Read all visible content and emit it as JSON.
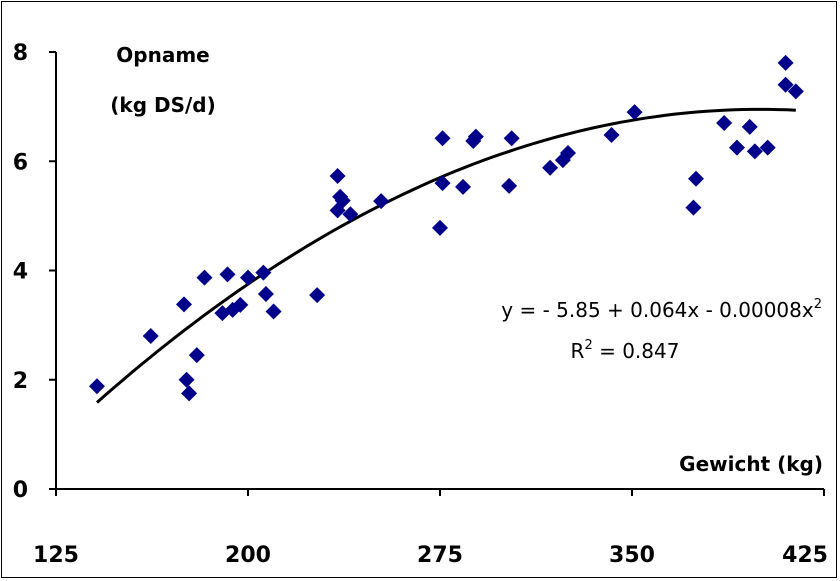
{
  "chart_data": {
    "type": "scatter",
    "ylabel_line1": "Opname",
    "ylabel_line2": "(kg DS/d)",
    "xlabel": "Gewicht (kg)",
    "xlim": [
      125,
      425
    ],
    "ylim": [
      0,
      8
    ],
    "xticks": [
      125,
      200,
      275,
      350,
      425
    ],
    "yticks": [
      0,
      2,
      4,
      6,
      8
    ],
    "grid": false,
    "marker_color": "#00008B",
    "trend_color": "#000000",
    "points": [
      [
        141,
        1.88
      ],
      [
        162,
        2.8
      ],
      [
        175,
        3.38
      ],
      [
        176,
        2.0
      ],
      [
        177,
        1.75
      ],
      [
        180,
        2.45
      ],
      [
        183,
        3.87
      ],
      [
        190,
        3.22
      ],
      [
        192,
        3.93
      ],
      [
        194,
        3.28
      ],
      [
        197,
        3.37
      ],
      [
        200,
        3.87
      ],
      [
        206,
        3.96
      ],
      [
        207,
        3.57
      ],
      [
        210,
        3.25
      ],
      [
        227,
        3.55
      ],
      [
        235,
        5.73
      ],
      [
        235,
        5.1
      ],
      [
        236,
        5.35
      ],
      [
        237,
        5.28
      ],
      [
        240,
        5.03
      ],
      [
        252,
        5.27
      ],
      [
        275,
        4.78
      ],
      [
        276,
        6.42
      ],
      [
        276,
        5.6
      ],
      [
        284,
        5.53
      ],
      [
        288,
        6.37
      ],
      [
        289,
        6.45
      ],
      [
        302,
        5.55
      ],
      [
        303,
        6.42
      ],
      [
        318,
        5.88
      ],
      [
        323,
        6.02
      ],
      [
        325,
        6.15
      ],
      [
        342,
        6.48
      ],
      [
        351,
        6.9
      ],
      [
        374,
        5.15
      ],
      [
        375,
        5.68
      ],
      [
        386,
        6.7
      ],
      [
        391,
        6.25
      ],
      [
        396,
        6.63
      ],
      [
        398,
        6.18
      ],
      [
        403,
        6.25
      ],
      [
        410,
        7.8
      ],
      [
        410,
        7.4
      ],
      [
        414,
        7.28
      ]
    ],
    "trendline": {
      "a": -5.85,
      "b": 0.064,
      "c": -8e-05,
      "x_range": [
        141,
        414
      ]
    },
    "equation": {
      "line1_main": "y = - 5.85 + 0.064x - 0.00008x",
      "line1_sup": "2",
      "line2_pre": "R",
      "line2_sup": "2",
      "line2_post": " = 0.847"
    }
  }
}
